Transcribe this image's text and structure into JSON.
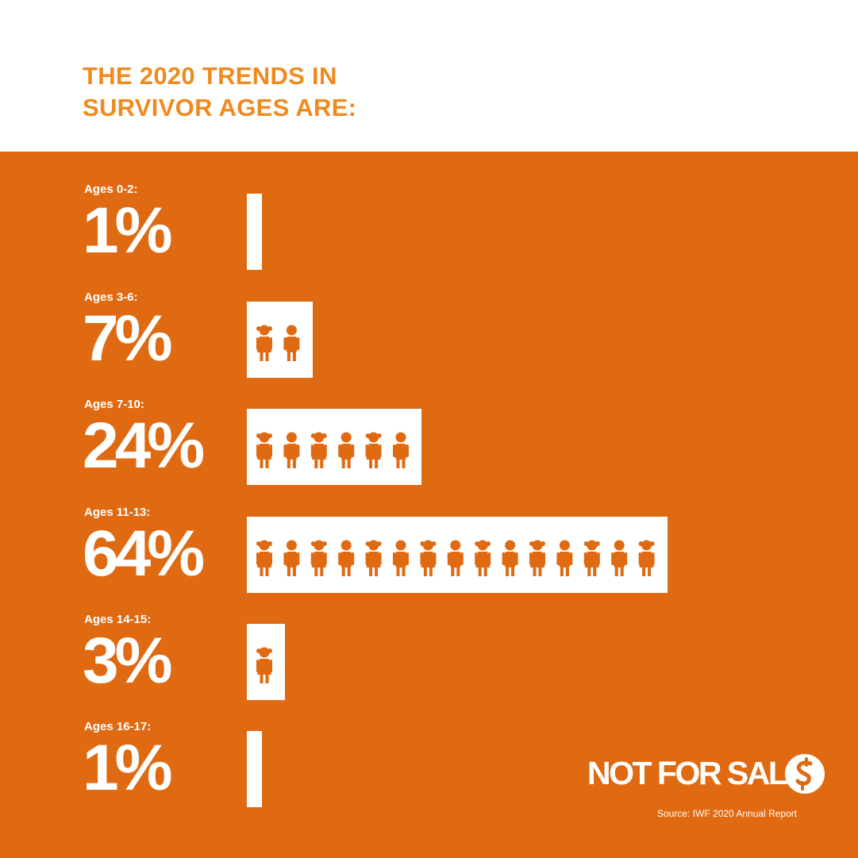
{
  "header": {
    "title": "THE 2020 TRENDS IN SURVIVOR AGES ARE:"
  },
  "chart_data": {
    "type": "bar",
    "categories": [
      "Ages 0-2:",
      "Ages 3-6:",
      "Ages 7-10:",
      "Ages 11-13:",
      "Ages 14-15:",
      "Ages 16-17:"
    ],
    "values": [
      1,
      7,
      24,
      64,
      3,
      1
    ],
    "data_labels": [
      "1%",
      "7%",
      "24%",
      "64%",
      "3%",
      "1%"
    ],
    "unit": "%",
    "orientation": "horizontal",
    "icons_per_bar": [
      0,
      2,
      6,
      15,
      1,
      0
    ],
    "colors": {
      "panel": "#e06a12",
      "bar": "#ffffff",
      "icon": "#e06a12",
      "title": "#f08a1f"
    }
  },
  "branding": {
    "logo_text": "NOT FOR SALE",
    "logo_icon": "dollar-swirl-icon"
  },
  "footer": {
    "source": "Source: IWF 2020 Annual Report"
  }
}
